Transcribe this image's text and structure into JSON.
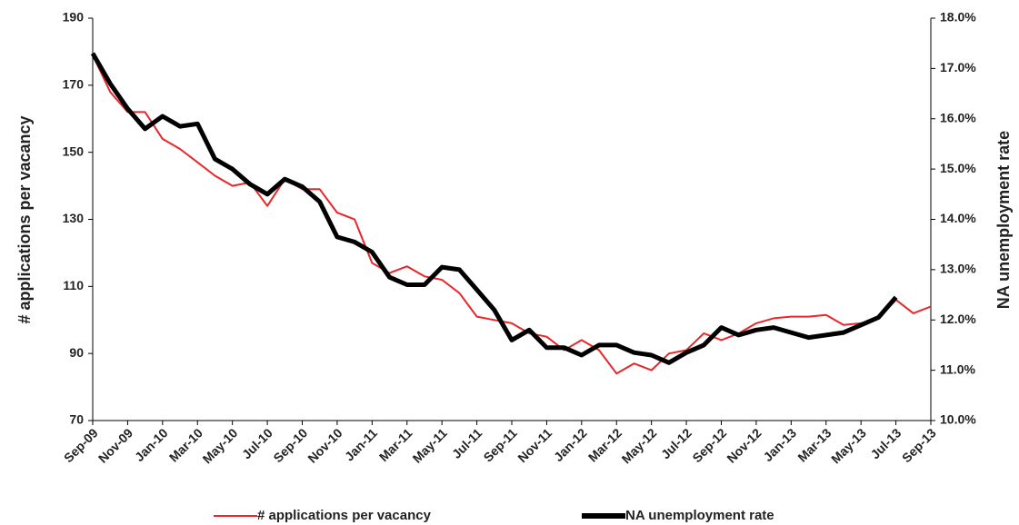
{
  "chart_data": {
    "type": "line",
    "categories": [
      "Sep-09",
      null,
      "Nov-09",
      null,
      "Jan-10",
      null,
      "Mar-10",
      null,
      "May-10",
      null,
      "Jul-10",
      null,
      "Sep-10",
      null,
      "Nov-10",
      null,
      "Jan-11",
      null,
      "Mar-11",
      null,
      "May-11",
      null,
      "Jul-11",
      null,
      "Sep-11",
      null,
      "Nov-11",
      null,
      "Jan-12",
      null,
      "Mar-12",
      null,
      "May-12",
      null,
      "Jul-12",
      null,
      "Sep-12",
      null,
      "Nov-12",
      null,
      "Jan-13",
      null,
      "Mar-13",
      null,
      "May-13",
      null,
      "Jul-13",
      null,
      "Sep-13"
    ],
    "series": [
      {
        "name": "# applications per vacancy",
        "color": "#e8262b",
        "values": [
          179,
          168,
          162,
          162,
          154,
          151,
          147,
          143,
          140,
          141,
          134,
          142,
          139,
          139,
          132,
          130,
          117,
          114,
          116,
          113,
          112,
          108,
          101,
          100,
          99,
          96,
          95,
          91,
          94,
          91,
          84,
          87,
          85,
          90,
          91,
          96,
          94,
          96,
          99,
          100.5,
          101,
          101,
          101.5,
          98.5,
          99,
          100.5,
          106,
          102,
          104
        ]
      },
      {
        "name": "NA unemployment rate",
        "color": "#000000",
        "axis": "y2",
        "values": [
          17.3,
          16.7,
          16.2,
          15.8,
          16.05,
          15.85,
          15.9,
          15.2,
          15.0,
          14.7,
          14.5,
          14.8,
          14.65,
          14.35,
          13.65,
          13.55,
          13.35,
          12.85,
          12.7,
          12.7,
          13.05,
          13.0,
          12.6,
          12.2,
          11.6,
          11.8,
          11.45,
          11.45,
          11.3,
          11.5,
          11.5,
          11.35,
          11.3,
          11.15,
          11.35,
          11.5,
          11.85,
          11.7,
          11.8,
          11.85,
          11.75,
          11.65,
          11.7,
          11.75,
          11.9,
          12.05,
          12.45,
          null,
          null
        ]
      }
    ],
    "y_label": "# applications  per vacancy",
    "y2_label": "NA unemployment rate",
    "ylim": [
      70,
      190
    ],
    "yticks": [
      70,
      90,
      110,
      130,
      150,
      170,
      190
    ],
    "y2lim": [
      10,
      18
    ],
    "y2ticks": [
      {
        "value": 10,
        "label": "10.0%"
      },
      {
        "value": 11,
        "label": "11.0%"
      },
      {
        "value": 12,
        "label": "12.0%"
      },
      {
        "value": 13,
        "label": "13.0%"
      },
      {
        "value": 14,
        "label": "14.0%"
      },
      {
        "value": 15,
        "label": "15.0%"
      },
      {
        "value": 16,
        "label": "16.0%"
      },
      {
        "value": 17,
        "label": "17.0%"
      },
      {
        "value": 18,
        "label": "18.0%"
      }
    ],
    "grid": false,
    "legend": "bottom"
  }
}
